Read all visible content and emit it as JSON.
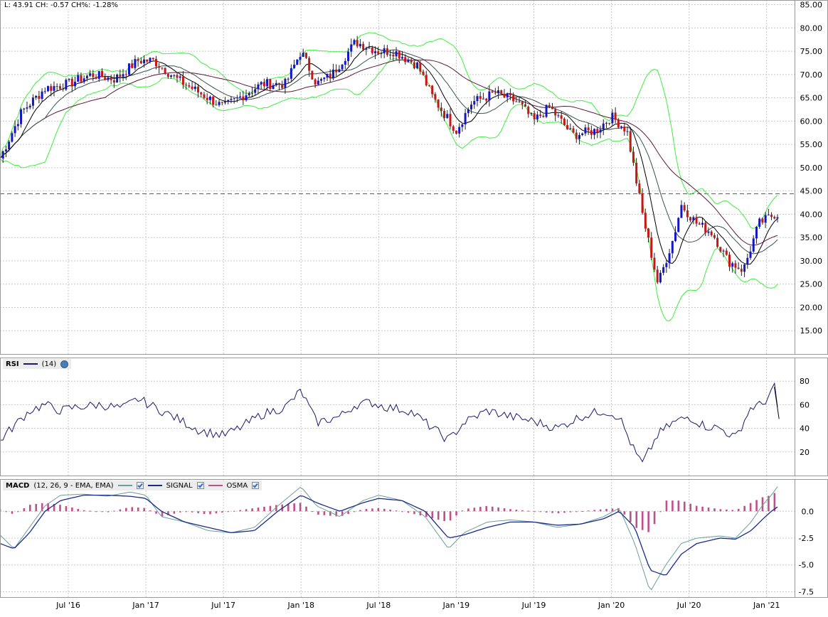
{
  "readout": "L: 43.91 CH: -0.57 CH%: -1.28%",
  "price_panel": {
    "y_ticks": [
      "85.00",
      "80.00",
      "75.00",
      "70.00",
      "65.00",
      "60.00",
      "55.00",
      "50.00",
      "45.00",
      "40.00",
      "35.00",
      "30.00",
      "25.00",
      "20.00",
      "15.00"
    ],
    "y_range": [
      10,
      86
    ],
    "last_price_line": 44.4
  },
  "rsi_panel": {
    "title": "RSI",
    "param": "(14)",
    "y_ticks": [
      "80",
      "60",
      "40",
      "20"
    ],
    "y_range": [
      0,
      100
    ]
  },
  "macd_panel": {
    "title": "MACD",
    "params": "(12, 26, 9 - EMA, EMA)",
    "signal_label": "SIGNAL",
    "osma_label": "OSMA",
    "y_ticks": [
      "0.0",
      "-2.5",
      "-5.0",
      "-7.5"
    ],
    "y_range": [
      -8,
      3
    ]
  },
  "x_axis": {
    "labels": [
      "Jul '16",
      "Jan '17",
      "Jul '17",
      "Jan '18",
      "Jul '18",
      "Jan '19",
      "Jul '19",
      "Jan '20",
      "Jul '20",
      "Jan '21"
    ],
    "label_positions": [
      2016.5,
      2017.0,
      2017.5,
      2018.0,
      2018.5,
      2019.0,
      2019.5,
      2020.0,
      2020.5,
      2021.0
    ],
    "range": [
      2016.06,
      2021.18
    ]
  },
  "colors": {
    "up_candle": "#1515c8",
    "down_candle": "#c81515",
    "bollinger": "#40ee40",
    "ma_fast": "#000000",
    "ma_mid": "#3a5050",
    "ma_slow": "#5a1838",
    "rsi_line": "#1a1a6a",
    "macd_line": "#6aa09a",
    "signal_line": "#1a2a8a",
    "osma_bars": "#c0508a",
    "grid": "#c8c8c8"
  },
  "chart_data": [
    {
      "type": "line",
      "title": "",
      "description_of_series": "weekly price (candles) with moving averages and bollinger bands",
      "x": [
        2016.06,
        2016.2,
        2016.35,
        2016.5,
        2016.65,
        2016.8,
        2016.95,
        2017.05,
        2017.2,
        2017.35,
        2017.5,
        2017.6,
        2017.75,
        2017.9,
        2018.0,
        2018.1,
        2018.2,
        2018.35,
        2018.5,
        2018.6,
        2018.75,
        2018.85,
        2019.0,
        2019.1,
        2019.25,
        2019.4,
        2019.5,
        2019.6,
        2019.75,
        2019.9,
        2020.0,
        2020.1,
        2020.2,
        2020.3,
        2020.4,
        2020.45,
        2020.55,
        2020.65,
        2020.75,
        2020.85,
        2020.95,
        2021.05
      ],
      "series": [
        {
          "name": "",
          "values": [
            52,
            62,
            67,
            68,
            70,
            69,
            73,
            73,
            69,
            66,
            63,
            65,
            68,
            68,
            75,
            68,
            70,
            77,
            75,
            75,
            72,
            65,
            58,
            64,
            66,
            64,
            60,
            63,
            57,
            58,
            61,
            58,
            40,
            25,
            35,
            42,
            38,
            36,
            30,
            28,
            38,
            40
          ]
        }
      ],
      "xlim": [
        2016.06,
        2021.18
      ],
      "ylim": [
        10,
        86
      ],
      "grid": true
    },
    {
      "type": "line",
      "title": "RSI",
      "x": [
        2016.06,
        2016.15,
        2016.25,
        2016.35,
        2016.45,
        2016.55,
        2016.7,
        2016.85,
        2016.95,
        2017.1,
        2017.25,
        2017.35,
        2017.5,
        2017.6,
        2017.75,
        2017.9,
        2018.0,
        2018.1,
        2018.25,
        2018.35,
        2018.45,
        2018.55,
        2018.7,
        2018.8,
        2018.95,
        2019.05,
        2019.2,
        2019.35,
        2019.5,
        2019.65,
        2019.8,
        2019.95,
        2020.05,
        2020.15,
        2020.2,
        2020.3,
        2020.4,
        2020.5,
        2020.6,
        2020.7,
        2020.8,
        2020.9,
        2020.97,
        2021.0,
        2021.05,
        2021.08
      ],
      "series": [
        {
          "name": "(14)",
          "values": [
            30,
            42,
            55,
            60,
            55,
            58,
            60,
            57,
            65,
            55,
            45,
            38,
            34,
            40,
            52,
            58,
            72,
            45,
            50,
            60,
            62,
            58,
            55,
            45,
            30,
            45,
            55,
            50,
            46,
            40,
            50,
            55,
            50,
            20,
            10,
            35,
            45,
            50,
            42,
            40,
            32,
            58,
            60,
            65,
            75,
            48
          ]
        }
      ],
      "xlim": [
        2016.06,
        2021.18
      ],
      "ylim": [
        0,
        100
      ],
      "grid": true
    },
    {
      "type": "line",
      "title": "MACD",
      "x": [
        2016.06,
        2016.15,
        2016.25,
        2016.35,
        2016.45,
        2016.6,
        2016.75,
        2016.9,
        2017.0,
        2017.1,
        2017.25,
        2017.4,
        2017.55,
        2017.7,
        2017.85,
        2018.0,
        2018.1,
        2018.25,
        2018.4,
        2018.5,
        2018.65,
        2018.8,
        2018.95,
        2019.05,
        2019.2,
        2019.35,
        2019.5,
        2019.65,
        2019.8,
        2019.95,
        2020.05,
        2020.15,
        2020.25,
        2020.35,
        2020.45,
        2020.55,
        2020.7,
        2020.8,
        2020.9,
        2020.97,
        2021.03,
        2021.08
      ],
      "series": [
        {
          "name": "MACD",
          "values": [
            -2.2,
            -3.5,
            -1.5,
            0.5,
            1.5,
            1.6,
            1.4,
            1.8,
            1.5,
            -0.5,
            -1.0,
            -1.8,
            -2.0,
            -1.5,
            0.5,
            2.3,
            0.5,
            -0.5,
            1.0,
            1.5,
            1.0,
            -0.5,
            -3.5,
            -2.0,
            -1.0,
            -0.8,
            -1.0,
            -1.5,
            -1.2,
            -0.5,
            0.3,
            -3.0,
            -7.5,
            -5.0,
            -3.0,
            -2.5,
            -2.3,
            -2.5,
            -1.0,
            0.5,
            1.5,
            2.5
          ]
        },
        {
          "name": "SIGNAL",
          "values": [
            -3.0,
            -3.5,
            -2.0,
            0.0,
            1.0,
            1.5,
            1.5,
            1.4,
            1.2,
            0.0,
            -1.0,
            -1.5,
            -2.0,
            -1.8,
            0.0,
            1.5,
            0.8,
            0.0,
            0.8,
            1.2,
            1.0,
            0.0,
            -2.5,
            -2.2,
            -1.5,
            -1.0,
            -1.0,
            -1.3,
            -1.2,
            -0.7,
            0.0,
            -1.5,
            -5.5,
            -6.0,
            -4.0,
            -3.0,
            -2.5,
            -2.6,
            -1.8,
            -0.8,
            0.0,
            0.5
          ]
        },
        {
          "name": "OSMA",
          "values": [
            0.2,
            -0.3,
            0.6,
            0.8,
            0.6,
            0.1,
            -0.1,
            0.4,
            0.3,
            -0.5,
            0.0,
            -0.3,
            0.0,
            0.3,
            0.6,
            0.8,
            -0.3,
            -0.5,
            0.2,
            0.3,
            0.0,
            -0.5,
            -1.0,
            0.2,
            0.5,
            0.2,
            0.0,
            -0.2,
            0.0,
            0.2,
            0.3,
            -1.5,
            -2.0,
            1.0,
            1.0,
            0.5,
            0.2,
            0.1,
            0.8,
            1.3,
            1.5,
            2.0
          ]
        }
      ],
      "xlim": [
        2016.06,
        2021.18
      ],
      "ylim": [
        -8,
        3
      ],
      "grid": true
    }
  ]
}
